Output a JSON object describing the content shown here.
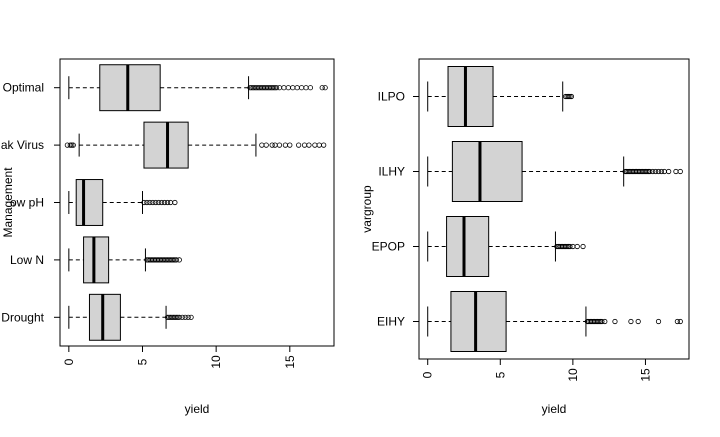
{
  "chart_data": [
    {
      "type": "boxplot",
      "orientation": "horizontal",
      "xlabel": "yield",
      "ylabel": "Management",
      "xlim": [
        -0.6,
        18.0
      ],
      "xticks": [
        0,
        5,
        10,
        15
      ],
      "grid": false,
      "box_color": "#d3d3d3",
      "categories": [
        "Drought",
        "Low N",
        "Low pH",
        "Streak Virus",
        "Optimal"
      ],
      "category_labels_visible": [
        "Drought",
        "Low N",
        "ow pH",
        "ak Virus",
        "Optimal"
      ],
      "boxes": [
        {
          "name": "Drought",
          "whisker_low": 0.0,
          "q1": 1.4,
          "median": 2.3,
          "q3": 3.5,
          "whisker_high": 6.6,
          "outliers": [
            6.7,
            6.8,
            6.9,
            7.0,
            7.1,
            7.2,
            7.3,
            7.4,
            7.5,
            7.7,
            7.9,
            8.1,
            8.3
          ]
        },
        {
          "name": "Low N",
          "whisker_low": 0.0,
          "q1": 1.0,
          "median": 1.7,
          "q3": 2.7,
          "whisker_high": 5.2,
          "outliers": [
            5.3,
            5.4,
            5.5,
            5.6,
            5.7,
            5.8,
            5.9,
            6.0,
            6.1,
            6.2,
            6.3,
            6.4,
            6.5,
            6.6,
            6.7,
            6.8,
            6.9,
            7.0,
            7.1,
            7.2,
            7.3,
            7.5
          ]
        },
        {
          "name": "Low pH",
          "whisker_low": 0.0,
          "q1": 0.5,
          "median": 1.0,
          "q3": 2.3,
          "whisker_high": 5.0,
          "outliers": [
            5.1,
            5.3,
            5.5,
            5.7,
            5.9,
            6.1,
            6.3,
            6.5,
            6.7,
            6.9,
            7.2
          ]
        },
        {
          "name": "Streak Virus",
          "whisker_low": 0.7,
          "q1": 5.1,
          "median": 6.7,
          "q3": 8.1,
          "whisker_high": 12.7,
          "outliers": [
            -0.1,
            0.1,
            0.2,
            0.3,
            13.1,
            13.4,
            13.8,
            14.0,
            14.3,
            14.7,
            15.0,
            15.6,
            16.0,
            16.3,
            16.7,
            17.0,
            17.3
          ]
        },
        {
          "name": "Optimal",
          "whisker_low": 0.0,
          "q1": 2.1,
          "median": 4.0,
          "q3": 6.2,
          "whisker_high": 12.2,
          "outliers": [
            12.3,
            12.4,
            12.5,
            12.6,
            12.7,
            12.8,
            12.9,
            13.0,
            13.1,
            13.2,
            13.3,
            13.4,
            13.5,
            13.6,
            13.7,
            13.8,
            13.9,
            14.0,
            14.1,
            14.3,
            14.6,
            14.9,
            15.2,
            15.5,
            15.8,
            16.1,
            16.4,
            17.2,
            17.4
          ]
        }
      ]
    },
    {
      "type": "boxplot",
      "orientation": "horizontal",
      "xlabel": "yield",
      "ylabel": "vargroup",
      "xlim": [
        -0.6,
        18.0
      ],
      "xticks": [
        0,
        5,
        10,
        15
      ],
      "grid": false,
      "box_color": "#d3d3d3",
      "categories": [
        "EIHY",
        "EPOP",
        "ILHY",
        "ILPO"
      ],
      "category_labels_visible": [
        "EIHY",
        "EPOP",
        "ILHY",
        "ILPO"
      ],
      "boxes": [
        {
          "name": "EIHY",
          "whisker_low": 0.0,
          "q1": 1.6,
          "median": 3.3,
          "q3": 5.4,
          "whisker_high": 10.9,
          "outliers": [
            11.0,
            11.1,
            11.2,
            11.3,
            11.4,
            11.5,
            11.6,
            11.7,
            11.8,
            11.9,
            12.0,
            12.2,
            12.9,
            14.0,
            14.5,
            15.9,
            17.2,
            17.4
          ]
        },
        {
          "name": "EPOP",
          "whisker_low": 0.0,
          "q1": 1.3,
          "median": 2.5,
          "q3": 4.2,
          "whisker_high": 8.8,
          "outliers": [
            8.9,
            9.0,
            9.1,
            9.2,
            9.3,
            9.4,
            9.5,
            9.6,
            9.7,
            9.8,
            10.0,
            10.3,
            10.7
          ]
        },
        {
          "name": "ILHY",
          "whisker_low": 0.0,
          "q1": 1.7,
          "median": 3.6,
          "q3": 6.5,
          "whisker_high": 13.5,
          "outliers": [
            13.6,
            13.7,
            13.8,
            13.9,
            14.0,
            14.1,
            14.2,
            14.3,
            14.4,
            14.5,
            14.6,
            14.7,
            14.8,
            14.9,
            15.0,
            15.1,
            15.2,
            15.3,
            15.5,
            15.7,
            15.9,
            16.1,
            16.3,
            16.6,
            17.1,
            17.4
          ]
        },
        {
          "name": "ILPO",
          "whisker_low": 0.0,
          "q1": 1.4,
          "median": 2.6,
          "q3": 4.5,
          "whisker_high": 9.3,
          "outliers": [
            9.5,
            9.6,
            9.7,
            9.8,
            9.9
          ]
        }
      ]
    }
  ]
}
